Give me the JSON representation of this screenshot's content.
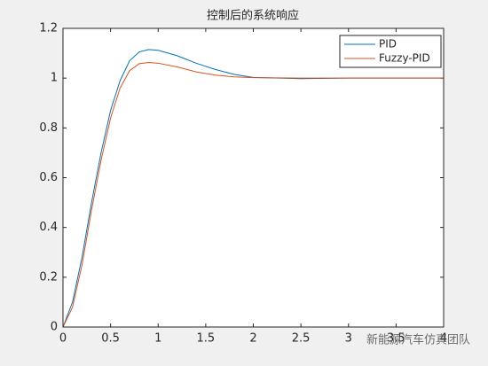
{
  "chart_data": {
    "type": "line",
    "title": "控制后的系统响应",
    "x": [
      0,
      0.1,
      0.2,
      0.3,
      0.4,
      0.5,
      0.6,
      0.7,
      0.8,
      0.9,
      1.0,
      1.2,
      1.4,
      1.6,
      1.8,
      2.0,
      2.5,
      3.0,
      3.5,
      4.0
    ],
    "series": [
      {
        "name": "PID",
        "color": "#0072bd",
        "values": [
          0,
          0.1,
          0.28,
          0.5,
          0.7,
          0.87,
          0.99,
          1.07,
          1.105,
          1.115,
          1.112,
          1.09,
          1.06,
          1.035,
          1.015,
          1.003,
          0.998,
          1,
          1,
          1
        ]
      },
      {
        "name": "Fuzzy-PID",
        "color": "#d95319",
        "values": [
          0,
          0.08,
          0.25,
          0.47,
          0.67,
          0.84,
          0.96,
          1.03,
          1.058,
          1.063,
          1.06,
          1.045,
          1.025,
          1.012,
          1.005,
          1.002,
          1,
          1,
          1,
          1
        ]
      }
    ],
    "xlim": [
      0,
      4
    ],
    "xticks": [
      0,
      0.5,
      1,
      1.5,
      2,
      2.5,
      3,
      3.5,
      4
    ],
    "ylim": [
      0,
      1.2
    ],
    "yticks": [
      0,
      0.2,
      0.4,
      0.6,
      0.8,
      1,
      1.2
    ],
    "legend": "top-right"
  },
  "watermark": "新能源汽车仿真团队"
}
